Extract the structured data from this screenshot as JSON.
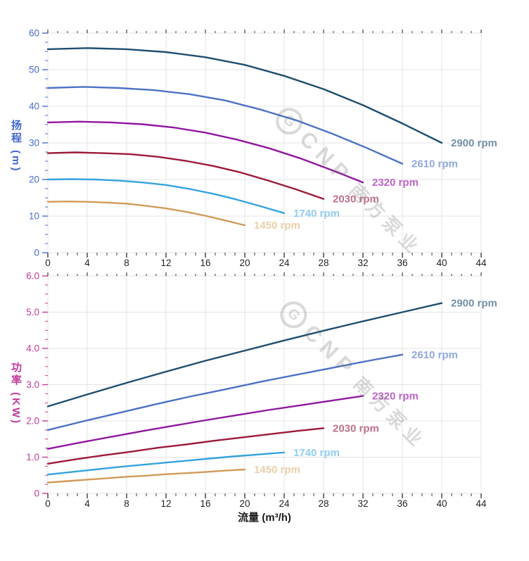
{
  "page": {
    "background": "#ffffff"
  },
  "axes": {
    "head_axis_title": "扬程 (m)",
    "power_axis_title": "功率 (KW)",
    "flow_axis_title": "流量 (m³/h)",
    "head_axis_color": "#4365cb",
    "power_axis_color": "#c2399c",
    "x_tick_color": "#3a3a3a",
    "grid_color": "#e3e3e3"
  },
  "watermark": {
    "logo_letter": "G",
    "brand": "CNP",
    "brand_cn": "南方泵业"
  },
  "chart_data": [
    {
      "type": "line",
      "title": "",
      "xlabel": "流量 (m³/h)",
      "ylabel": "扬程 (m)",
      "xlim": [
        0,
        44
      ],
      "ylim": [
        0,
        60
      ],
      "grid": true,
      "legend_position": "curve-end-labels",
      "x_tick_values": [
        0,
        4,
        8,
        12,
        16,
        20,
        24,
        28,
        32,
        36,
        40,
        44
      ],
      "x_tick_labels": [
        "0",
        "4",
        "8",
        "12",
        "16",
        "20",
        "24",
        "28",
        "32",
        "36",
        "40",
        "44"
      ],
      "x_minor_step": 1,
      "y_tick_values": [
        0,
        10,
        20,
        30,
        40,
        50,
        60
      ],
      "y_tick_labels": [
        "0",
        "10",
        "20",
        "30",
        "40",
        "50",
        "60"
      ],
      "y_minor_step": 2.5,
      "axis_color": "#4a6bce",
      "series": [
        {
          "name": "2900 rpm",
          "color": "#1f4e6f",
          "label_color": "#7191a8",
          "x": [
            0,
            4,
            8,
            12,
            16,
            20,
            24,
            28,
            32,
            36,
            40
          ],
          "y": [
            55.6,
            55.9,
            55.6,
            54.8,
            53.4,
            51.3,
            48.3,
            44.7,
            40.3,
            35.3,
            30.0
          ]
        },
        {
          "name": "2610 rpm",
          "color": "#4d72c4",
          "label_color": "#90a7de",
          "x": [
            0,
            3.6,
            7.2,
            10.8,
            14.4,
            18,
            21.6,
            25.2,
            28.8,
            32.4,
            36
          ],
          "y": [
            45.0,
            45.3,
            45.0,
            44.4,
            43.3,
            41.6,
            39.1,
            36.2,
            32.6,
            28.6,
            24.3
          ]
        },
        {
          "name": "2320 rpm",
          "color": "#8f189f",
          "label_color": "#bb63c6",
          "x": [
            0,
            3.2,
            6.4,
            9.6,
            12.8,
            16,
            19.2,
            22.4,
            25.6,
            28.8,
            32
          ],
          "y": [
            35.6,
            35.8,
            35.6,
            35.1,
            34.2,
            32.8,
            30.9,
            28.6,
            25.8,
            22.6,
            19.2
          ]
        },
        {
          "name": "2030 rpm",
          "color": "#9c1a39",
          "label_color": "#bd7086",
          "x": [
            0,
            2.8,
            5.6,
            8.4,
            11.2,
            14,
            16.8,
            19.6,
            22.4,
            25.2,
            28
          ],
          "y": [
            27.2,
            27.4,
            27.2,
            26.9,
            26.2,
            25.1,
            23.7,
            21.9,
            19.7,
            17.3,
            14.7
          ]
        },
        {
          "name": "1740 rpm",
          "color": "#35a3dd",
          "label_color": "#8ecdf0",
          "x": [
            0,
            2.4,
            4.8,
            7.2,
            9.6,
            12,
            14.4,
            16.8,
            19.2,
            21.6,
            24
          ],
          "y": [
            20.0,
            20.1,
            20.0,
            19.7,
            19.2,
            18.5,
            17.4,
            16.1,
            14.5,
            12.7,
            10.8
          ]
        },
        {
          "name": "1450 rpm",
          "color": "#d09b59",
          "label_color": "#e8cfa8",
          "x": [
            0,
            2,
            4,
            6,
            8,
            10,
            12,
            14,
            16,
            18,
            20
          ],
          "y": [
            13.9,
            14.0,
            13.9,
            13.7,
            13.4,
            12.8,
            12.1,
            11.2,
            10.1,
            8.8,
            7.5
          ]
        }
      ]
    },
    {
      "type": "line",
      "title": "",
      "xlabel": "流量 (m³/h)",
      "ylabel": "功率 (KW)",
      "xlim": [
        0,
        44
      ],
      "ylim": [
        0,
        6
      ],
      "grid": true,
      "legend_position": "curve-end-labels",
      "x_tick_values": [
        0,
        4,
        8,
        12,
        16,
        20,
        24,
        28,
        32,
        36,
        40,
        44
      ],
      "x_tick_labels": [
        "0",
        "4",
        "8",
        "12",
        "16",
        "20",
        "24",
        "28",
        "32",
        "36",
        "40",
        "44"
      ],
      "x_minor_step": 1,
      "y_tick_values": [
        0,
        1,
        2,
        3,
        4,
        5,
        6
      ],
      "y_tick_labels": [
        "0",
        "1.0",
        "2.0",
        "3.0",
        "4.0",
        "5.0",
        "6.0"
      ],
      "y_minor_step": 0.25,
      "axis_color": "#c2399c",
      "series": [
        {
          "name": "2900 rpm",
          "color": "#1f4e6f",
          "label_color": "#7191a8",
          "x": [
            0,
            4,
            8,
            12,
            16,
            20,
            24,
            28,
            32,
            36,
            40
          ],
          "y": [
            2.4,
            2.73,
            3.05,
            3.36,
            3.66,
            3.94,
            4.22,
            4.49,
            4.75,
            5.0,
            5.25
          ]
        },
        {
          "name": "2610 rpm",
          "color": "#4d72c4",
          "label_color": "#90a7de",
          "x": [
            0,
            3.6,
            7.2,
            10.8,
            14.4,
            18,
            21.6,
            25.2,
            28.8,
            32.4,
            36
          ],
          "y": [
            1.75,
            1.99,
            2.22,
            2.45,
            2.67,
            2.87,
            3.08,
            3.27,
            3.46,
            3.65,
            3.83
          ]
        },
        {
          "name": "2320 rpm",
          "color": "#8f189f",
          "label_color": "#bb63c6",
          "x": [
            0,
            3.2,
            6.4,
            9.6,
            12.8,
            16,
            19.2,
            22.4,
            25.6,
            28.8,
            32
          ],
          "y": [
            1.23,
            1.4,
            1.56,
            1.72,
            1.87,
            2.02,
            2.16,
            2.3,
            2.43,
            2.56,
            2.69
          ]
        },
        {
          "name": "2030 rpm",
          "color": "#9c1a39",
          "label_color": "#bd7086",
          "x": [
            0,
            2.8,
            5.6,
            8.4,
            11.2,
            14,
            16.8,
            19.6,
            22.4,
            25.2,
            28
          ],
          "y": [
            0.82,
            0.94,
            1.05,
            1.15,
            1.26,
            1.35,
            1.45,
            1.54,
            1.63,
            1.72,
            1.8
          ]
        },
        {
          "name": "1740 rpm",
          "color": "#35a3dd",
          "label_color": "#8ecdf0",
          "x": [
            0,
            2.4,
            4.8,
            7.2,
            9.6,
            12,
            14.4,
            16.8,
            19.2,
            21.6,
            24
          ],
          "y": [
            0.52,
            0.59,
            0.66,
            0.73,
            0.79,
            0.85,
            0.91,
            0.97,
            1.03,
            1.08,
            1.13
          ]
        },
        {
          "name": "1450 rpm",
          "color": "#d09b59",
          "label_color": "#e8cfa8",
          "x": [
            0,
            2,
            4,
            6,
            8,
            10,
            12,
            14,
            16,
            18,
            20
          ],
          "y": [
            0.3,
            0.34,
            0.38,
            0.42,
            0.46,
            0.49,
            0.53,
            0.56,
            0.59,
            0.63,
            0.66
          ]
        }
      ]
    }
  ]
}
